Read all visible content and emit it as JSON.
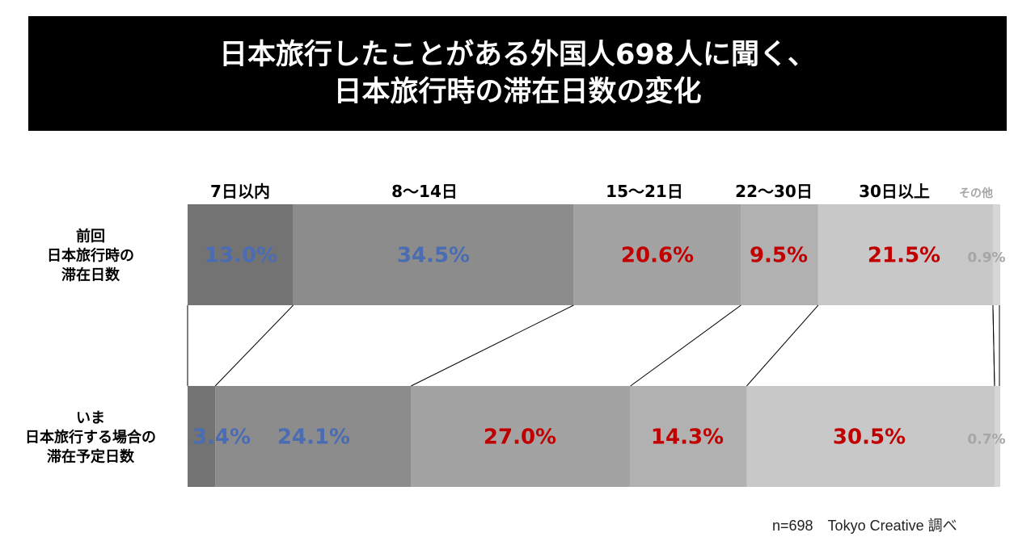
{
  "title": {
    "line1": "日本旅行したことがある外国人698人に聞く、",
    "line2": "日本旅行時の滞在日数の変化"
  },
  "footer": "n=698　Tokyo Creative 調べ",
  "chart_data": {
    "type": "bar",
    "orientation": "horizontal",
    "stacked": "100%",
    "categories": [
      "7日以内",
      "8～14日",
      "15～21日",
      "22～30日",
      "30日以上",
      "その他"
    ],
    "rows": [
      {
        "label": [
          "前回",
          "日本旅行時の",
          "滞在日数"
        ],
        "values": [
          13.0,
          34.5,
          20.6,
          9.5,
          21.5,
          0.9
        ]
      },
      {
        "label": [
          "いま",
          "日本旅行する場合の",
          "滞在予定日数"
        ],
        "values": [
          3.4,
          24.1,
          27.0,
          14.3,
          30.5,
          0.7
        ]
      }
    ],
    "value_labels": [
      [
        "13.0%",
        "34.5%",
        "20.6%",
        "9.5%",
        "21.5%",
        "0.9%"
      ],
      [
        "3.4%",
        "24.1%",
        "27.0%",
        "14.3%",
        "30.5%",
        "0.7%"
      ]
    ],
    "unit": "%",
    "colors": {
      "segments": [
        "#737373",
        "#8c8c8c",
        "#a3a3a3",
        "#b1b1b1",
        "#c8c8c8",
        "#d6d6d6"
      ],
      "label_blue": "#4a6cb3",
      "label_red": "#c00000",
      "label_gray": "#a6a6a6",
      "category_text": "#000000",
      "other_category_text": "#a6a6a6"
    },
    "label_color_by_category": [
      "blue",
      "blue",
      "red",
      "red",
      "red",
      "gray"
    ]
  }
}
